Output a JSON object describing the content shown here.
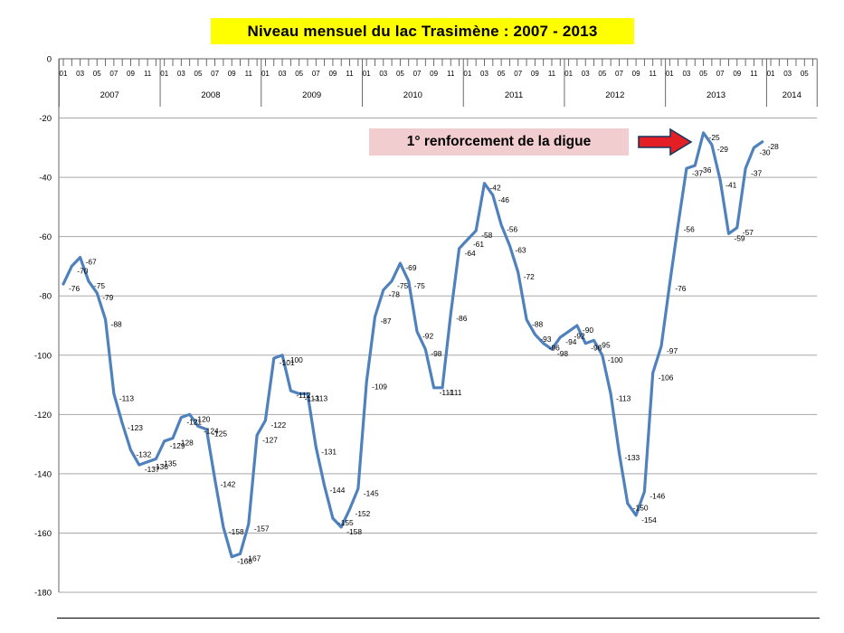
{
  "page": {
    "background": "#FFFFFF"
  },
  "header": {
    "title": "Niveau mensuel du lac Trasimène :  2007 - 2013",
    "title_bg": "#FFFF00"
  },
  "annotation": {
    "text": "1° renforcement de la digue",
    "bg": "#F2CDCF",
    "arrow_color": "#E31E24",
    "arrow_outline": "#17375E"
  },
  "chart_data": {
    "type": "line",
    "title": "Niveau mensuel du lac Trasimène :  2007 - 2013",
    "xlabel": "",
    "ylabel": "",
    "ylim": [
      -180,
      0
    ],
    "y_ticks": [
      0,
      -20,
      -40,
      -60,
      -80,
      -100,
      -120,
      -140,
      -160,
      -180
    ],
    "grid": true,
    "legend": "none",
    "line_color": "#4F81BD",
    "label_color": "#000000",
    "grid_color": "#A8A8A8",
    "axis_color": "#808080",
    "month_label_step": 2,
    "x_years": [
      {
        "label": "2007",
        "months": 12
      },
      {
        "label": "2008",
        "months": 12
      },
      {
        "label": "2009",
        "months": 12
      },
      {
        "label": "2010",
        "months": 12
      },
      {
        "label": "2011",
        "months": 12
      },
      {
        "label": "2012",
        "months": 12
      },
      {
        "label": "2013",
        "months": 12
      },
      {
        "label": "2014",
        "months": 6
      }
    ],
    "series": [
      {
        "name": "Niveau mensuel (cm)",
        "start": "2007-01",
        "values": [
          -76,
          -70,
          -67,
          -75,
          -79,
          -88,
          -113,
          -123,
          -132,
          -137,
          -136,
          -135,
          -129,
          -128,
          -121,
          -120,
          -124,
          -125,
          -142,
          -158,
          -168,
          -167,
          -157,
          -127,
          -122,
          -101,
          -100,
          -112,
          -113,
          -113,
          -131,
          -144,
          -155,
          -158,
          -152,
          -145,
          -109,
          -87,
          -78,
          -75,
          -69,
          -75,
          -92,
          -98,
          -111,
          -111,
          -86,
          -64,
          -61,
          -58,
          -42,
          -46,
          -56,
          -63,
          -72,
          -88,
          -93,
          -96,
          -98,
          -94,
          -92,
          -90,
          -96,
          -95,
          -100,
          -113,
          -133,
          -150,
          -154,
          -146,
          -106,
          -97,
          -76,
          -56,
          -37,
          -36,
          -25,
          -29,
          -41,
          -59,
          -57,
          -37,
          -30,
          -28
        ]
      }
    ]
  }
}
